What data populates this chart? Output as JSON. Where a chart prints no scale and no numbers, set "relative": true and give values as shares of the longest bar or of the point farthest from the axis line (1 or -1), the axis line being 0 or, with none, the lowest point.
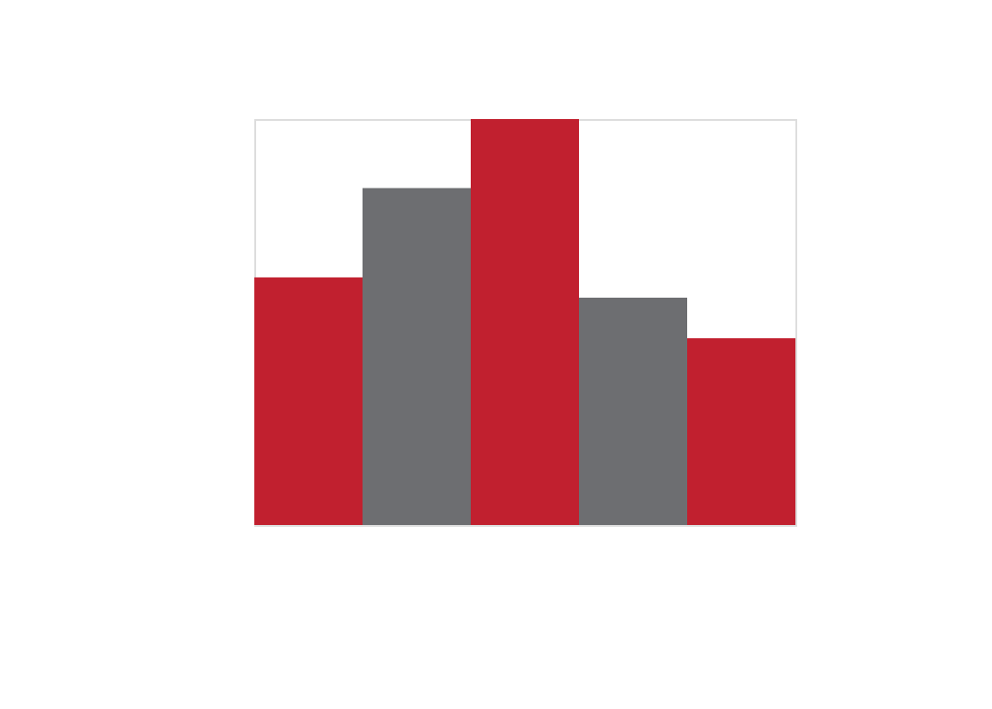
{
  "chart_data": {
    "type": "bar",
    "relative": true,
    "categories": [
      null,
      null,
      null,
      null,
      null
    ],
    "values": [
      0.61,
      0.83,
      1,
      0.56,
      0.46
    ],
    "colors": [
      "#c1202f",
      "#6d6e71",
      "#c1202f",
      "#6d6e71",
      "#c1202f"
    ],
    "tick_labels": false
  }
}
